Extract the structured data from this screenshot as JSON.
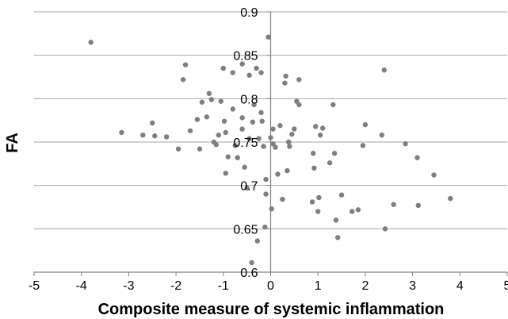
{
  "chart_data": {
    "type": "scatter",
    "title": "",
    "xlabel": "Composite measure of systemic inflammation",
    "ylabel": "FA",
    "xlim": [
      -5,
      5
    ],
    "ylim": [
      0.6,
      0.9
    ],
    "x_ticks": [
      "-5",
      "-4",
      "-3",
      "-2",
      "-1",
      "0",
      "1",
      "2",
      "3",
      "4",
      "5"
    ],
    "y_ticks": [
      "0.6",
      "0.65",
      "0.7",
      "0.75",
      "0.8",
      "0.85",
      "0.9"
    ],
    "grid": "horizontal",
    "legend": "none",
    "colors": {
      "point": "#7f7f7f",
      "grid": "#a6a6a6",
      "axis": "#808080",
      "text": "#000000"
    },
    "series": [
      {
        "points": [
          [
            -3.8,
            0.865
          ],
          [
            -3.15,
            0.761
          ],
          [
            -2.7,
            0.758
          ],
          [
            -2.5,
            0.772
          ],
          [
            -2.45,
            0.757
          ],
          [
            -2.2,
            0.756
          ],
          [
            -1.95,
            0.742
          ],
          [
            -1.85,
            0.822
          ],
          [
            -1.8,
            0.839
          ],
          [
            -1.7,
            0.763
          ],
          [
            -1.55,
            0.776
          ],
          [
            -1.5,
            0.742
          ],
          [
            -1.45,
            0.796
          ],
          [
            -1.35,
            0.779
          ],
          [
            -1.3,
            0.806
          ],
          [
            -1.25,
            0.799
          ],
          [
            -1.2,
            0.75
          ],
          [
            -1.15,
            0.747
          ],
          [
            -1.1,
            0.758
          ],
          [
            -1.05,
            0.797
          ],
          [
            -1.0,
            0.835
          ],
          [
            -0.98,
            0.774
          ],
          [
            -0.95,
            0.761
          ],
          [
            -0.95,
            0.714
          ],
          [
            -0.9,
            0.733
          ],
          [
            -0.8,
            0.83
          ],
          [
            -0.8,
            0.788
          ],
          [
            -0.75,
            0.746
          ],
          [
            -0.7,
            0.732
          ],
          [
            -0.6,
            0.84
          ],
          [
            -0.6,
            0.778
          ],
          [
            -0.6,
            0.765
          ],
          [
            -0.55,
            0.721
          ],
          [
            -0.5,
            0.697
          ],
          [
            -0.45,
            0.827
          ],
          [
            -0.45,
            0.754
          ],
          [
            -0.4,
            0.611
          ],
          [
            -0.38,
            0.773
          ],
          [
            -0.35,
            0.793
          ],
          [
            -0.3,
            0.835
          ],
          [
            -0.28,
            0.636
          ],
          [
            -0.25,
            0.754
          ],
          [
            -0.2,
            0.83
          ],
          [
            -0.2,
            0.784
          ],
          [
            -0.18,
            0.774
          ],
          [
            -0.15,
            0.745
          ],
          [
            -0.1,
            0.707
          ],
          [
            -0.12,
            0.652
          ],
          [
            -0.1,
            0.69
          ],
          [
            -0.05,
            0.871
          ],
          [
            0.0,
            0.755
          ],
          [
            0.02,
            0.673
          ],
          [
            0.05,
            0.765
          ],
          [
            0.05,
            0.748
          ],
          [
            0.1,
            0.744
          ],
          [
            0.15,
            0.713
          ],
          [
            0.2,
            0.769
          ],
          [
            0.25,
            0.684
          ],
          [
            0.3,
            0.818
          ],
          [
            0.32,
            0.826
          ],
          [
            0.35,
            0.717
          ],
          [
            0.38,
            0.75
          ],
          [
            0.4,
            0.745
          ],
          [
            0.45,
            0.759
          ],
          [
            0.5,
            0.765
          ],
          [
            0.55,
            0.797
          ],
          [
            0.6,
            0.793
          ],
          [
            0.6,
            0.822
          ],
          [
            0.88,
            0.681
          ],
          [
            0.9,
            0.737
          ],
          [
            0.92,
            0.72
          ],
          [
            0.95,
            0.768
          ],
          [
            1.0,
            0.67
          ],
          [
            1.02,
            0.686
          ],
          [
            1.05,
            0.758
          ],
          [
            1.1,
            0.766
          ],
          [
            1.25,
            0.726
          ],
          [
            1.32,
            0.793
          ],
          [
            1.35,
            0.737
          ],
          [
            1.38,
            0.66
          ],
          [
            1.42,
            0.64
          ],
          [
            1.5,
            0.689
          ],
          [
            1.72,
            0.67
          ],
          [
            1.85,
            0.672
          ],
          [
            1.95,
            0.746
          ],
          [
            2.0,
            0.77
          ],
          [
            2.35,
            0.758
          ],
          [
            2.4,
            0.833
          ],
          [
            2.42,
            0.65
          ],
          [
            2.6,
            0.678
          ],
          [
            2.85,
            0.748
          ],
          [
            3.1,
            0.732
          ],
          [
            3.12,
            0.677
          ],
          [
            3.45,
            0.712
          ],
          [
            3.8,
            0.685
          ]
        ]
      }
    ]
  }
}
